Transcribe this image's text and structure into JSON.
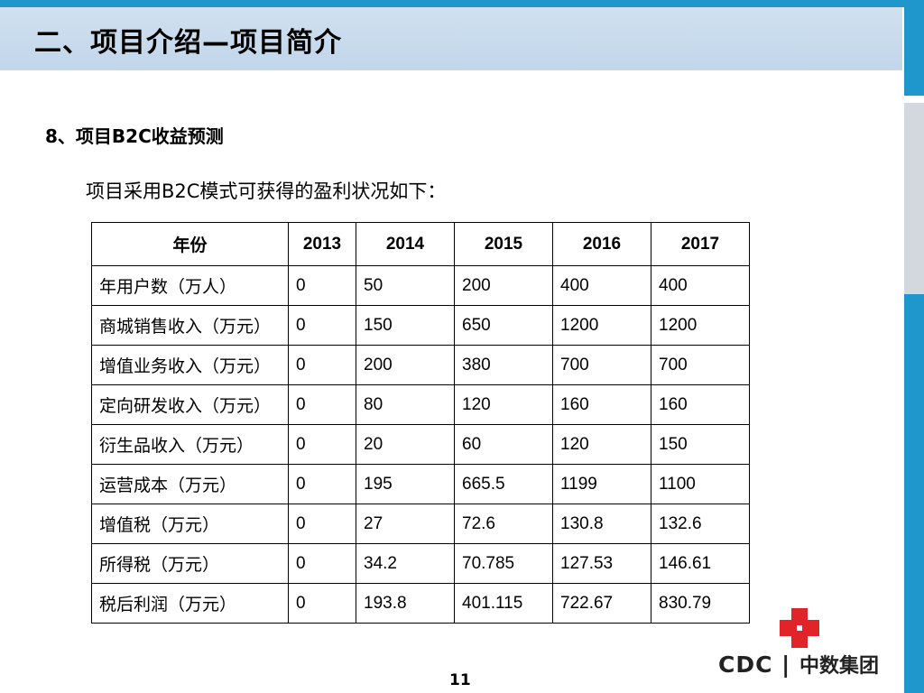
{
  "slide": {
    "title": "二、项目介绍—项目简介",
    "section_heading": "8、项目B2C收益预测",
    "intro": "项目采用B2C模式可获得的盈利状况如下：",
    "page_number": "11"
  },
  "table": {
    "headers": [
      "年份",
      "2013",
      "2014",
      "2015",
      "2016",
      "2017"
    ],
    "rows": [
      [
        "年用户数（万人）",
        "0",
        "50",
        "200",
        "400",
        "400"
      ],
      [
        "商城销售收入（万元）",
        "0",
        "150",
        "650",
        "1200",
        "1200"
      ],
      [
        "增值业务收入（万元）",
        "0",
        "200",
        "380",
        "700",
        "700"
      ],
      [
        "定向研发收入（万元）",
        "0",
        "80",
        "120",
        "160",
        "160"
      ],
      [
        "衍生品收入（万元）",
        "0",
        "20",
        "60",
        "120",
        "150"
      ],
      [
        "运营成本（万元）",
        "0",
        "195",
        "665.5",
        "1199",
        "1100"
      ],
      [
        "增值税（万元）",
        "0",
        "27",
        "72.6",
        "130.8",
        "132.6"
      ],
      [
        "所得税（万元）",
        "0",
        "34.2",
        "70.785",
        "127.53",
        "146.61"
      ],
      [
        "税后利润（万元）",
        "0",
        "193.8",
        "401.115",
        "722.67",
        "830.79"
      ]
    ]
  },
  "logo": {
    "latin": "CDC",
    "chinese": "中数集团",
    "icon": "red-cross-logo-icon",
    "color": "#e0242a"
  },
  "colors": {
    "accent": "#1f97cd",
    "title_band": "#c2d6ea"
  }
}
